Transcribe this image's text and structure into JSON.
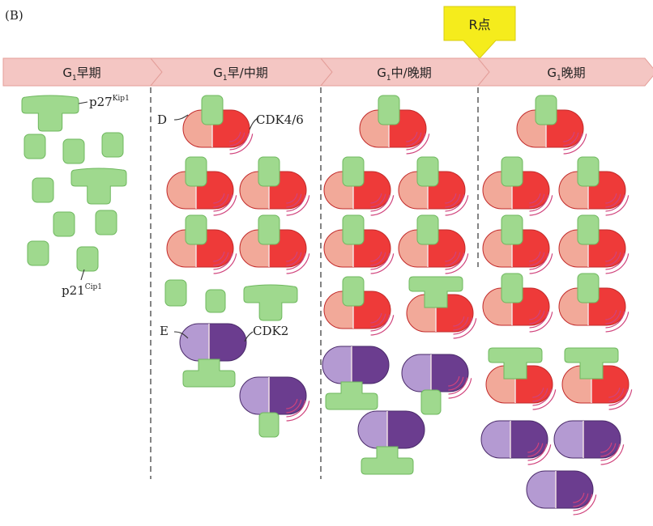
{
  "panel_label": "(B)",
  "r_point_label": "R点",
  "phases": [
    {
      "g": "G",
      "sub": "1",
      "rest": "早期"
    },
    {
      "g": "G",
      "sub": "1",
      "rest": "早/中期"
    },
    {
      "g": "G",
      "sub": "1",
      "rest": "中/晚期"
    },
    {
      "g": "G",
      "sub": "1",
      "rest": "晚期"
    }
  ],
  "labels": {
    "p27": "p27",
    "p27_sup": "Kip1",
    "p21": "p21",
    "p21_sup": "Cip1",
    "D": "D",
    "CDK46": "CDK4/6",
    "E": "E",
    "CDK2": "CDK2"
  },
  "colors": {
    "banner": "#f4c6c3",
    "banner_stroke": "#e49f9a",
    "arrow": "#f5ec1c",
    "green": "#9fd98e",
    "green_stroke": "#6fb85f",
    "cyclin_d": "#f2a999",
    "cdk46": "#ee3a39",
    "cdk46_stroke": "#c22a2a",
    "cyclin_e": "#b49ad2",
    "cdk2": "#6b3d8f",
    "purple_stroke": "#4a2a6a",
    "phospho": "#d0437c"
  }
}
